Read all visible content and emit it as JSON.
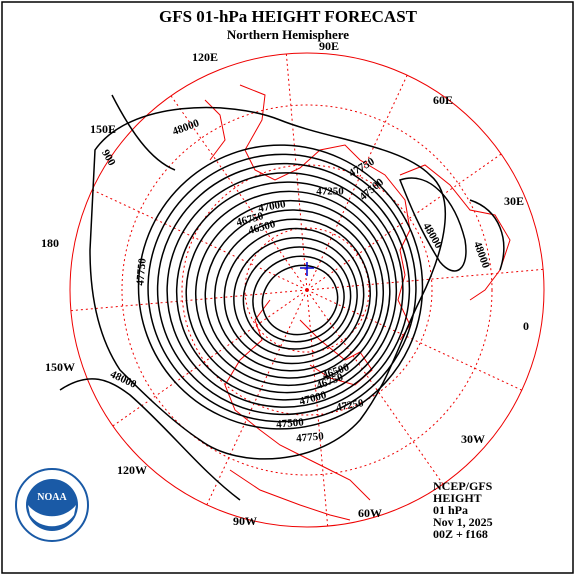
{
  "header": {
    "title": "GFS 01-hPa HEIGHT FORECAST",
    "subtitle": "Northern Hemisphere"
  },
  "longitude_labels": [
    "90E",
    "60E",
    "30E",
    "0",
    "30W",
    "60W",
    "90W",
    "120W",
    "150W",
    "180",
    "150E",
    "120E"
  ],
  "contour_labels": [
    "48000",
    "900",
    "47750",
    "48000",
    "48000",
    "48000",
    "47750",
    "47500",
    "47250",
    "47000",
    "46750",
    "46500",
    "47000",
    "47250",
    "47500",
    "47750",
    "46750",
    "46500"
  ],
  "logo": {
    "text": "NOAA"
  },
  "info": [
    "NCEP/GFS",
    "HEIGHT",
    "01 hPa",
    "Nov 1, 2025",
    "00Z + f168"
  ]
}
